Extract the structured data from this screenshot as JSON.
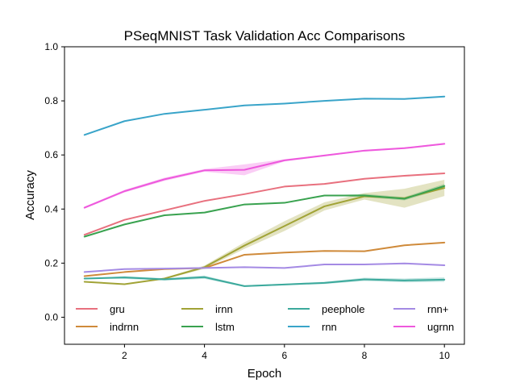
{
  "chart_data": {
    "type": "line",
    "title": "PSeqMNIST Task Validation Acc  Comparisons",
    "xlabel": "Epoch",
    "ylabel": "Accuracy",
    "xlim": [
      0.5,
      10.5
    ],
    "ylim": [
      -0.1,
      1.0
    ],
    "xticks": [
      2,
      4,
      6,
      8,
      10
    ],
    "yticks": [
      0.0,
      0.2,
      0.4,
      0.6,
      0.8,
      1.0
    ],
    "xtick_labels": [
      "2",
      "4",
      "6",
      "8",
      "10"
    ],
    "ytick_labels": [
      "0.0",
      "0.2",
      "0.4",
      "0.6",
      "0.8",
      "1.0"
    ],
    "grid": false,
    "legend_placement": "bottom",
    "x": [
      1,
      2,
      3,
      4,
      5,
      6,
      7,
      8,
      9,
      10
    ],
    "series": [
      {
        "name": "gru",
        "color": "#e8707e",
        "values": [
          0.305,
          0.36,
          0.395,
          0.43,
          0.455,
          0.483,
          0.493,
          0.512,
          0.523,
          0.532
        ]
      },
      {
        "name": "indrnn",
        "color": "#cf8a3a",
        "values": [
          0.152,
          0.167,
          0.178,
          0.182,
          0.231,
          0.239,
          0.245,
          0.244,
          0.266,
          0.276
        ]
      },
      {
        "name": "irnn",
        "color": "#a1a336",
        "values": [
          0.131,
          0.122,
          0.143,
          0.185,
          0.265,
          0.337,
          0.41,
          0.447,
          0.44,
          0.478
        ],
        "band": [
          0.0,
          0.0,
          0.003,
          0.006,
          0.012,
          0.018,
          0.015,
          0.012,
          0.035,
          0.03
        ]
      },
      {
        "name": "lstm",
        "color": "#39a24f",
        "values": [
          0.298,
          0.343,
          0.377,
          0.387,
          0.417,
          0.423,
          0.45,
          0.45,
          0.438,
          0.485
        ],
        "band": [
          0.0,
          0.0,
          0.0,
          0.0,
          0.0,
          0.0,
          0.0,
          0.006,
          0.006,
          0.008
        ]
      },
      {
        "name": "peephole",
        "color": "#3ba99c",
        "values": [
          0.143,
          0.147,
          0.14,
          0.148,
          0.115,
          0.121,
          0.127,
          0.14,
          0.136,
          0.139
        ],
        "band": [
          0.0,
          0.005,
          0.004,
          0.006,
          0.003,
          0.003,
          0.004,
          0.006,
          0.007,
          0.008
        ]
      },
      {
        "name": "rnn",
        "color": "#39a4c9",
        "values": [
          0.674,
          0.725,
          0.752,
          0.767,
          0.783,
          0.79,
          0.8,
          0.808,
          0.807,
          0.816
        ]
      },
      {
        "name": "rnn+",
        "color": "#a48ae4",
        "values": [
          0.167,
          0.178,
          0.18,
          0.182,
          0.185,
          0.182,
          0.195,
          0.195,
          0.199,
          0.192
        ]
      },
      {
        "name": "ugrnn",
        "color": "#ee58dd",
        "values": [
          0.405,
          0.466,
          0.51,
          0.543,
          0.545,
          0.58,
          0.598,
          0.616,
          0.625,
          0.641
        ],
        "band": [
          0.004,
          0.005,
          0.006,
          0.005,
          0.02,
          0.004,
          0.003,
          0.003,
          0.003,
          0.003
        ]
      }
    ]
  }
}
